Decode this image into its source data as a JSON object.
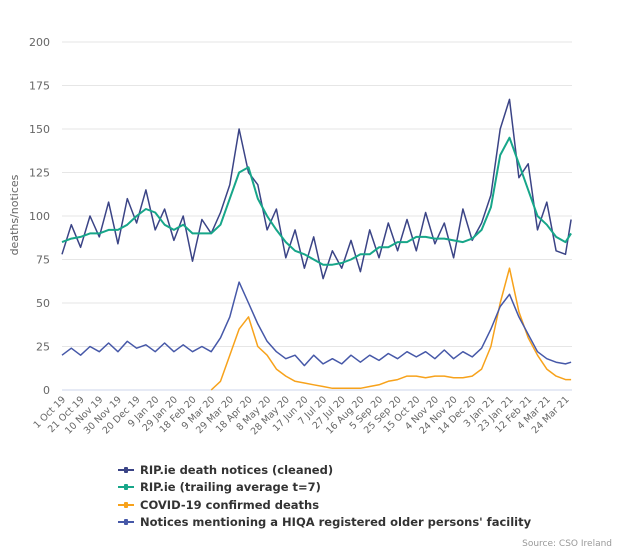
{
  "chart_data": {
    "type": "line",
    "title": "",
    "xlabel": "",
    "ylabel": "deaths/notices",
    "ylim": [
      0,
      200
    ],
    "yticks": [
      0,
      25,
      50,
      75,
      100,
      125,
      150,
      175,
      200
    ],
    "grid": true,
    "legend_position": "bottom-left",
    "x_tick_labels": [
      "1 Oct 19",
      "21 Oct 19",
      "10 Nov 19",
      "30 Nov 19",
      "20 Dec 19",
      "9 Jan 20",
      "29 Jan 20",
      "18 Feb 20",
      "9 Mar 20",
      "29 Mar 20",
      "18 Apr 20",
      "8 May 20",
      "28 May 20",
      "17 Jun 20",
      "7 Jul 20",
      "27 Jul 20",
      "16 Aug 20",
      "5 Sep 20",
      "25 Sep 20",
      "15 Oct 20",
      "4 Nov 20",
      "24 Nov 20",
      "14 Dec 20",
      "3 Jan 21",
      "23 Jan 21",
      "12 Feb 21",
      "4 Mar 21",
      "24 Mar 21"
    ],
    "x_dates": [
      "2019-10-01",
      "2019-10-11",
      "2019-10-21",
      "2019-10-31",
      "2019-11-10",
      "2019-11-20",
      "2019-11-30",
      "2019-12-10",
      "2019-12-20",
      "2019-12-30",
      "2020-01-09",
      "2020-01-19",
      "2020-01-29",
      "2020-02-08",
      "2020-02-18",
      "2020-02-28",
      "2020-03-09",
      "2020-03-19",
      "2020-03-29",
      "2020-04-08",
      "2020-04-18",
      "2020-04-28",
      "2020-05-08",
      "2020-05-18",
      "2020-05-28",
      "2020-06-07",
      "2020-06-17",
      "2020-06-27",
      "2020-07-07",
      "2020-07-17",
      "2020-07-27",
      "2020-08-06",
      "2020-08-16",
      "2020-08-26",
      "2020-09-05",
      "2020-09-15",
      "2020-09-25",
      "2020-10-05",
      "2020-10-15",
      "2020-10-25",
      "2020-11-04",
      "2020-11-14",
      "2020-11-24",
      "2020-12-04",
      "2020-12-14",
      "2020-12-24",
      "2021-01-03",
      "2021-01-13",
      "2021-01-23",
      "2021-02-02",
      "2021-02-12",
      "2021-02-22",
      "2021-03-04",
      "2021-03-14",
      "2021-03-24",
      "2021-03-30"
    ],
    "series": [
      {
        "name": "RIP.ie death notices (cleaned)",
        "color": "#3b4486",
        "values": [
          78,
          95,
          82,
          100,
          88,
          108,
          84,
          110,
          96,
          115,
          92,
          104,
          86,
          100,
          74,
          98,
          90,
          102,
          118,
          150,
          125,
          118,
          92,
          104,
          76,
          92,
          70,
          88,
          64,
          80,
          70,
          86,
          68,
          92,
          76,
          96,
          80,
          98,
          80,
          102,
          84,
          96,
          76,
          104,
          86,
          96,
          112,
          150,
          167,
          122,
          130,
          92,
          108,
          80,
          78,
          98
        ]
      },
      {
        "name": "RIP.ie (trailing average t=7)",
        "color": "#17a689",
        "values": [
          85,
          87,
          88,
          90,
          90,
          92,
          92,
          95,
          100,
          104,
          102,
          95,
          92,
          95,
          90,
          90,
          90,
          95,
          110,
          125,
          128,
          110,
          100,
          92,
          85,
          80,
          78,
          75,
          72,
          72,
          73,
          75,
          78,
          78,
          82,
          82,
          85,
          85,
          88,
          88,
          87,
          87,
          86,
          85,
          87,
          92,
          105,
          135,
          145,
          130,
          115,
          100,
          95,
          88,
          85,
          90
        ]
      },
      {
        "name": "COVID-19 confirmed deaths",
        "color": "#f7a21b",
        "values": [
          null,
          null,
          null,
          null,
          null,
          null,
          null,
          null,
          null,
          null,
          null,
          null,
          null,
          null,
          null,
          null,
          0,
          5,
          20,
          35,
          42,
          25,
          20,
          12,
          8,
          5,
          4,
          3,
          2,
          1,
          1,
          1,
          1,
          2,
          3,
          5,
          6,
          8,
          8,
          7,
          8,
          8,
          7,
          7,
          8,
          12,
          25,
          50,
          70,
          45,
          30,
          20,
          12,
          8,
          6,
          6
        ]
      },
      {
        "name": "Notices mentioning a HIQA registered older persons' facility",
        "color": "#4658a8",
        "values": [
          20,
          24,
          20,
          25,
          22,
          27,
          22,
          28,
          24,
          26,
          22,
          27,
          22,
          26,
          22,
          25,
          22,
          30,
          42,
          62,
          50,
          38,
          28,
          22,
          18,
          20,
          14,
          20,
          15,
          18,
          15,
          20,
          16,
          20,
          17,
          21,
          18,
          22,
          19,
          22,
          18,
          23,
          18,
          22,
          19,
          24,
          35,
          48,
          55,
          42,
          32,
          22,
          18,
          16,
          15,
          16
        ]
      }
    ],
    "source": "Source: CSO Ireland"
  }
}
